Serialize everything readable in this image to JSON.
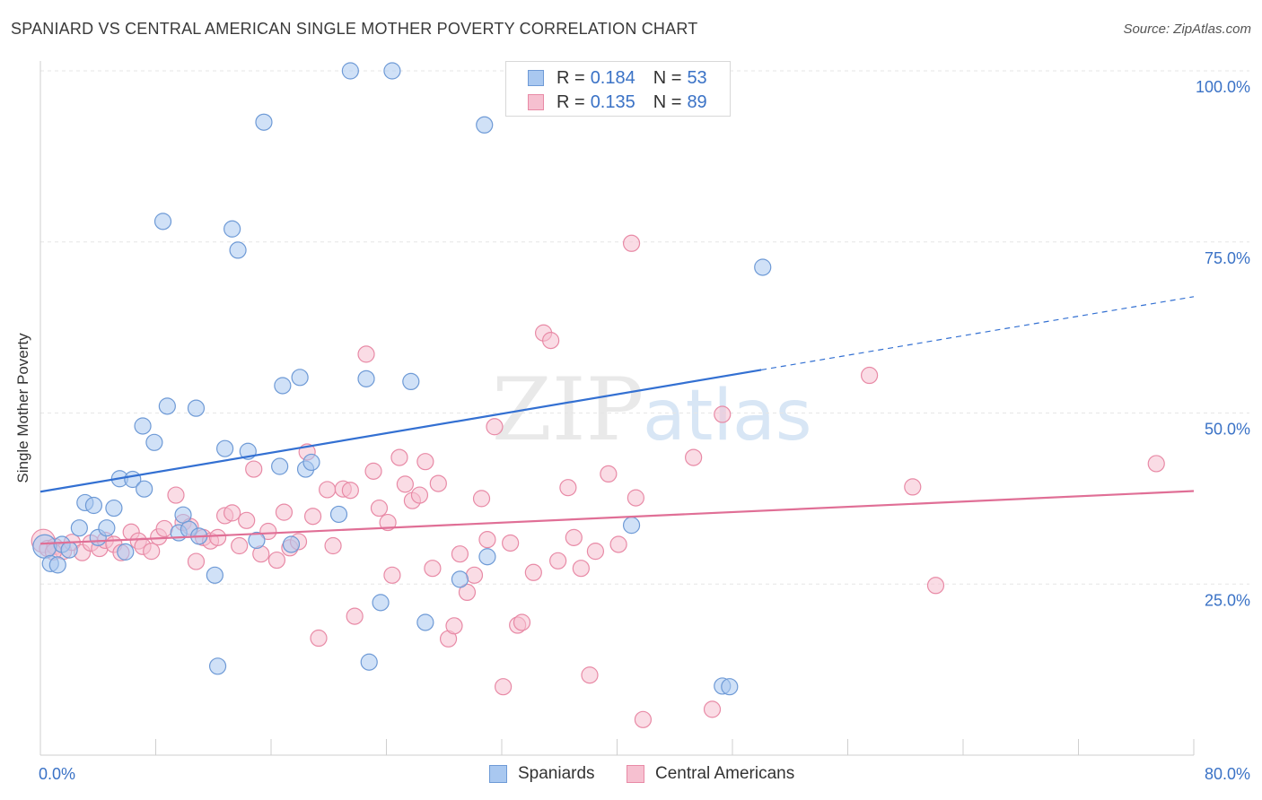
{
  "header": {
    "title": "SPANIARD VS CENTRAL AMERICAN SINGLE MOTHER POVERTY CORRELATION CHART",
    "source": "Source: ZipAtlas.com"
  },
  "legend_top": {
    "rows": [
      {
        "r_label": "R =",
        "r_value": "0.184",
        "n_label": "N =",
        "n_value": "53"
      },
      {
        "r_label": "R =",
        "r_value": "0.135",
        "n_label": "N =",
        "n_value": "89"
      }
    ]
  },
  "legend_bottom": {
    "items": [
      {
        "label": "Spaniards"
      },
      {
        "label": "Central Americans"
      }
    ]
  },
  "watermark": {
    "zip": "ZIP",
    "atlas": "atlas"
  },
  "colors": {
    "blue_fill": "#a9c8f0",
    "blue_stroke": "#6e9ad6",
    "blue_line": "#3370d2",
    "pink_fill": "#f6c0d0",
    "pink_stroke": "#e88aa6",
    "pink_line": "#e06f96",
    "tick_label": "#3a72c6",
    "grid": "#e6e6e6"
  },
  "chart_data": {
    "type": "scatter",
    "title": "SPANIARD VS CENTRAL AMERICAN SINGLE MOTHER POVERTY CORRELATION CHART",
    "xlabel": "",
    "ylabel": "Single Mother Poverty",
    "xlim": [
      0,
      80
    ],
    "ylim": [
      0,
      102
    ],
    "x_tick_labels": [
      "0.0%",
      "80.0%"
    ],
    "y_ticks": [
      25,
      50,
      75,
      100
    ],
    "y_tick_labels": [
      "25.0%",
      "50.0%",
      "75.0%",
      "100.0%"
    ],
    "grid": "horizontal dashed",
    "legend_position": "top-center",
    "series": [
      {
        "name": "Spaniards",
        "r": 0.184,
        "n": 53,
        "trend": {
          "x0": 0,
          "y0": 38.5,
          "x1": 50,
          "y1": 56.3,
          "dashed_to_x": 80,
          "dashed_to_y": 67
        },
        "points": [
          [
            0.3,
            30.5
          ],
          [
            0.7,
            28.0
          ],
          [
            1.2,
            27.8
          ],
          [
            1.5,
            30.8
          ],
          [
            2.0,
            30.0
          ],
          [
            2.7,
            33.2
          ],
          [
            3.1,
            36.9
          ],
          [
            3.7,
            36.5
          ],
          [
            4.0,
            31.8
          ],
          [
            4.6,
            33.2
          ],
          [
            5.1,
            36.1
          ],
          [
            5.5,
            40.4
          ],
          [
            5.9,
            29.7
          ],
          [
            6.4,
            40.3
          ],
          [
            7.2,
            38.9
          ],
          [
            7.1,
            48.1
          ],
          [
            7.9,
            45.7
          ],
          [
            8.5,
            78.0
          ],
          [
            8.8,
            51.0
          ],
          [
            9.6,
            32.5
          ],
          [
            9.9,
            35.1
          ],
          [
            10.3,
            33.0
          ],
          [
            10.8,
            50.7
          ],
          [
            11.0,
            32.0
          ],
          [
            12.1,
            26.3
          ],
          [
            12.3,
            13.0
          ],
          [
            12.8,
            44.8
          ],
          [
            13.3,
            76.9
          ],
          [
            13.7,
            73.8
          ],
          [
            14.4,
            44.4
          ],
          [
            15.0,
            31.4
          ],
          [
            15.5,
            92.5
          ],
          [
            16.6,
            42.2
          ],
          [
            16.8,
            54.0
          ],
          [
            17.4,
            30.8
          ],
          [
            18.0,
            55.2
          ],
          [
            18.4,
            41.8
          ],
          [
            18.8,
            42.8
          ],
          [
            20.7,
            35.2
          ],
          [
            21.5,
            100.0
          ],
          [
            22.6,
            55.0
          ],
          [
            22.8,
            13.6
          ],
          [
            23.6,
            22.3
          ],
          [
            24.4,
            100.0
          ],
          [
            25.7,
            54.6
          ],
          [
            26.7,
            19.4
          ],
          [
            29.1,
            25.7
          ],
          [
            30.8,
            92.1
          ],
          [
            31.0,
            29.0
          ],
          [
            47.3,
            10.1
          ],
          [
            47.8,
            10.0
          ],
          [
            50.1,
            71.3
          ],
          [
            41.0,
            33.6
          ]
        ]
      },
      {
        "name": "Central Americans",
        "r": 0.135,
        "n": 89,
        "trend": {
          "x0": 0,
          "y0": 30.9,
          "x1": 80,
          "y1": 38.6
        },
        "points": [
          [
            0.2,
            31.3
          ],
          [
            0.5,
            30.2
          ],
          [
            1.0,
            30.5
          ],
          [
            1.6,
            29.8
          ],
          [
            2.2,
            31.1
          ],
          [
            2.9,
            29.6
          ],
          [
            3.5,
            31.0
          ],
          [
            4.1,
            30.2
          ],
          [
            4.5,
            31.4
          ],
          [
            5.1,
            30.8
          ],
          [
            5.6,
            29.6
          ],
          [
            6.3,
            32.6
          ],
          [
            6.8,
            31.3
          ],
          [
            7.1,
            30.5
          ],
          [
            7.7,
            29.8
          ],
          [
            8.2,
            31.9
          ],
          [
            8.6,
            33.1
          ],
          [
            9.4,
            38.0
          ],
          [
            9.9,
            34.0
          ],
          [
            10.4,
            33.4
          ],
          [
            10.8,
            28.3
          ],
          [
            11.3,
            31.8
          ],
          [
            11.8,
            31.3
          ],
          [
            12.3,
            31.8
          ],
          [
            12.8,
            35.0
          ],
          [
            13.3,
            35.4
          ],
          [
            13.8,
            30.6
          ],
          [
            14.3,
            34.3
          ],
          [
            14.8,
            41.8
          ],
          [
            15.3,
            29.4
          ],
          [
            15.8,
            32.7
          ],
          [
            16.4,
            28.5
          ],
          [
            16.9,
            35.5
          ],
          [
            17.3,
            30.3
          ],
          [
            17.9,
            31.2
          ],
          [
            18.5,
            44.3
          ],
          [
            18.9,
            34.9
          ],
          [
            19.3,
            17.1
          ],
          [
            19.9,
            38.8
          ],
          [
            20.3,
            30.6
          ],
          [
            21.0,
            38.9
          ],
          [
            21.5,
            38.7
          ],
          [
            21.8,
            20.3
          ],
          [
            22.6,
            58.6
          ],
          [
            23.1,
            41.5
          ],
          [
            23.5,
            36.1
          ],
          [
            24.1,
            34.0
          ],
          [
            24.4,
            26.3
          ],
          [
            24.9,
            43.5
          ],
          [
            25.3,
            39.6
          ],
          [
            25.8,
            37.2
          ],
          [
            26.3,
            38.0
          ],
          [
            26.7,
            42.9
          ],
          [
            27.2,
            27.3
          ],
          [
            27.6,
            39.7
          ],
          [
            28.3,
            17.0
          ],
          [
            28.7,
            18.9
          ],
          [
            29.1,
            29.4
          ],
          [
            29.6,
            23.8
          ],
          [
            30.1,
            26.3
          ],
          [
            30.6,
            37.5
          ],
          [
            31.0,
            31.5
          ],
          [
            31.5,
            48.0
          ],
          [
            32.1,
            10.0
          ],
          [
            32.6,
            31.0
          ],
          [
            33.1,
            19.0
          ],
          [
            33.4,
            19.4
          ],
          [
            34.2,
            26.7
          ],
          [
            34.9,
            61.7
          ],
          [
            35.4,
            60.6
          ],
          [
            35.9,
            28.4
          ],
          [
            36.6,
            39.1
          ],
          [
            37.0,
            31.8
          ],
          [
            37.5,
            27.3
          ],
          [
            38.1,
            11.7
          ],
          [
            38.5,
            29.8
          ],
          [
            39.4,
            41.1
          ],
          [
            40.1,
            30.8
          ],
          [
            41.0,
            74.8
          ],
          [
            41.3,
            37.6
          ],
          [
            41.8,
            5.2
          ],
          [
            45.3,
            43.5
          ],
          [
            46.6,
            6.7
          ],
          [
            47.3,
            49.8
          ],
          [
            57.5,
            55.5
          ],
          [
            60.5,
            39.2
          ],
          [
            62.1,
            24.8
          ],
          [
            77.4,
            42.6
          ],
          [
            0.9,
            29.7
          ]
        ]
      }
    ]
  }
}
